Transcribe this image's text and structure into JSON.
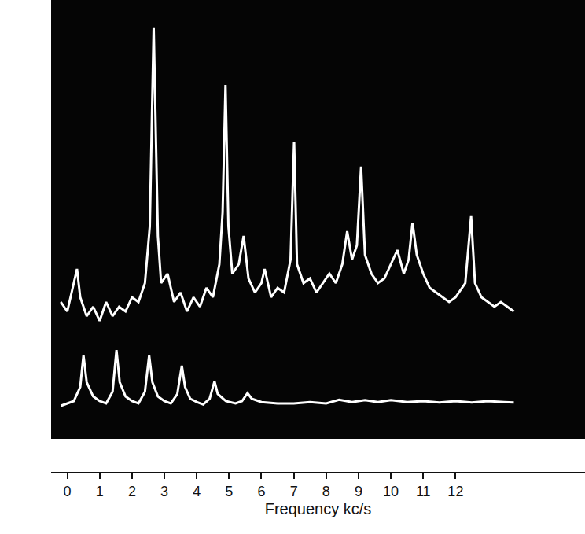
{
  "chart_data": {
    "type": "line",
    "x_label": "Frequency kc/s",
    "xlim": [
      -0.5,
      16
    ],
    "xticks": [
      0,
      1,
      2,
      3,
      4,
      5,
      6,
      7,
      8,
      9,
      10,
      11,
      12
    ],
    "ylim": [
      0,
      100
    ],
    "yticks": [],
    "grid": false,
    "tick_labels": "x",
    "series": [
      {
        "color": "#ffffff",
        "x": [
          -0.2,
          0,
          0.2,
          0.3,
          0.4,
          0.6,
          0.8,
          1.0,
          1.2,
          1.4,
          1.6,
          1.8,
          2.0,
          2.2,
          2.4,
          2.55,
          2.67,
          2.8,
          2.9,
          3.1,
          3.3,
          3.5,
          3.7,
          3.9,
          4.1,
          4.3,
          4.5,
          4.7,
          4.8,
          4.89,
          4.98,
          5.1,
          5.3,
          5.45,
          5.6,
          5.8,
          6.0,
          6.1,
          6.3,
          6.5,
          6.7,
          6.9,
          7.01,
          7.1,
          7.3,
          7.5,
          7.7,
          7.9,
          8.1,
          8.3,
          8.5,
          8.65,
          8.8,
          8.95,
          9.08,
          9.2,
          9.4,
          9.6,
          9.8,
          10.0,
          10.2,
          10.4,
          10.55,
          10.67,
          10.8,
          11.0,
          11.2,
          11.4,
          11.6,
          11.8,
          12.0,
          12.3,
          12.48,
          12.6,
          12.8,
          13.0,
          13.2,
          13.4,
          13.6,
          13.8
        ],
        "values": [
          36,
          34,
          40,
          43,
          37,
          33,
          35,
          32,
          36,
          33,
          35,
          34,
          37,
          36,
          40,
          52,
          94.2,
          50,
          40,
          42,
          36,
          38,
          34,
          37,
          35,
          39,
          37,
          44,
          55,
          82,
          52,
          42,
          44,
          50,
          41,
          38,
          40,
          43,
          37,
          39,
          38,
          45,
          70,
          44,
          40,
          41,
          38,
          40,
          42,
          40,
          44,
          51,
          45,
          48,
          64.7,
          46,
          42,
          40,
          41,
          44,
          47,
          42,
          45,
          52.8,
          46,
          42,
          39,
          38,
          37,
          36,
          37,
          40,
          54.2,
          40,
          37,
          36,
          35,
          36,
          35,
          34
        ]
      },
      {
        "color": "#ffffff",
        "x": [
          -0.2,
          0,
          0.2,
          0.4,
          0.5,
          0.6,
          0.8,
          1.0,
          1.2,
          1.4,
          1.52,
          1.62,
          1.8,
          2.0,
          2.2,
          2.4,
          2.53,
          2.63,
          2.8,
          3.0,
          3.2,
          3.4,
          3.54,
          3.64,
          3.8,
          4.0,
          4.2,
          4.4,
          4.55,
          4.65,
          4.9,
          5.2,
          5.4,
          5.57,
          5.7,
          6.0,
          6.5,
          7.0,
          7.5,
          8.0,
          8.4,
          8.8,
          9.2,
          9.6,
          10.0,
          10.5,
          11.0,
          11.5,
          12.0,
          12.5,
          13.0,
          13.5,
          13.8
        ],
        "values": [
          14,
          14.5,
          15,
          18,
          24.7,
          19,
          16,
          15,
          14.5,
          17,
          25.8,
          19,
          16,
          15,
          14.5,
          17,
          24.7,
          19,
          16,
          15,
          14.5,
          16.5,
          22.5,
          18,
          15.5,
          14.8,
          14.3,
          15.5,
          19.2,
          16.5,
          15,
          14.5,
          15,
          16.7,
          15.5,
          14.8,
          14.5,
          14.5,
          14.8,
          14.5,
          15.3,
          14.8,
          15.2,
          14.8,
          15.2,
          14.8,
          15,
          14.7,
          15,
          14.7,
          15,
          14.8,
          14.7
        ]
      }
    ]
  }
}
